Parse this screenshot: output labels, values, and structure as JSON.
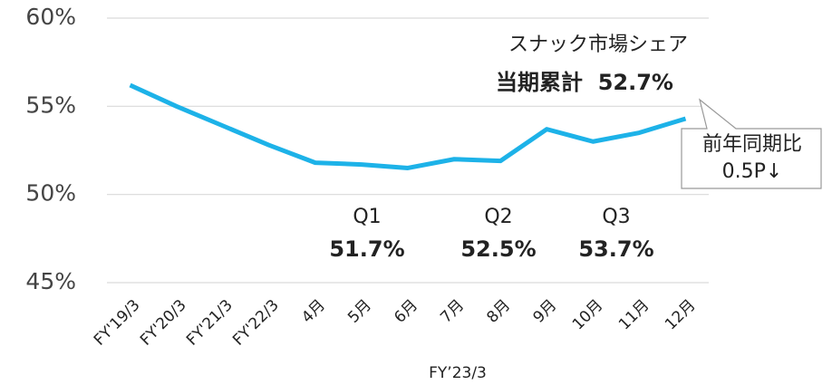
{
  "chart_data": {
    "type": "line",
    "categories": [
      "FY'19/3",
      "FY'20/3",
      "FY'21/3",
      "FY'22/3",
      "4月",
      "5月",
      "6月",
      "7月",
      "8月",
      "9月",
      "10月",
      "11月",
      "12月"
    ],
    "series": [
      {
        "name": "スナック市場シェア",
        "color": "#1db2e8",
        "values": [
          56.2,
          55.0,
          53.9,
          52.8,
          51.8,
          51.7,
          51.5,
          52.0,
          51.9,
          53.7,
          53.0,
          53.5,
          54.3
        ]
      }
    ],
    "x_label": "FY’23/3",
    "ylim": [
      45,
      60
    ],
    "yticks": [
      {
        "value": 45,
        "label": "45%"
      },
      {
        "value": 50,
        "label": "50%"
      },
      {
        "value": 55,
        "label": "55%"
      },
      {
        "value": 60,
        "label": "60%"
      }
    ],
    "grid": true,
    "annotations": {
      "total": "当期累計  52.7%",
      "callout": [
        "前年同期比",
        "0.5P↓"
      ],
      "quarters": [
        {
          "label": "Q1",
          "value": "51.7%"
        },
        {
          "label": "Q2",
          "value": "52.5%"
        },
        {
          "label": "Q3",
          "value": "53.7%"
        }
      ]
    }
  }
}
